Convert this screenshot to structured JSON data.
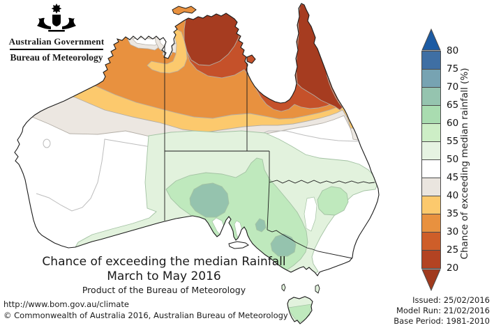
{
  "logo": {
    "gov_title": "Australian Government",
    "bureau": "Bureau of Meteorology"
  },
  "title": {
    "line1": "Chance of exceeding the median Rainfall",
    "line2": "March to May 2016",
    "line3": "Product of the Bureau of Meteorology"
  },
  "legend": {
    "axis_label": "Chance of exceeding median rainfall (%)",
    "ticks": [
      "80",
      "75",
      "70",
      "65",
      "60",
      "55",
      "50",
      "45",
      "40",
      "35",
      "30",
      "25",
      "20"
    ],
    "arrow_up": {
      "label": "above 80",
      "color": "#1c5ba3"
    },
    "bands": [
      {
        "label": "75-80",
        "color": "#3f6fa4"
      },
      {
        "label": "70-75",
        "color": "#77a3b2"
      },
      {
        "label": "65-70",
        "color": "#95c4af"
      },
      {
        "label": "60-65",
        "color": "#a9dcb0"
      },
      {
        "label": "55-60",
        "color": "#cdeec6"
      },
      {
        "label": "50-55",
        "color": "#e6f3e2"
      },
      {
        "label": "45-50",
        "color": "#ffffff"
      },
      {
        "label": "40-45",
        "color": "#eae5df"
      },
      {
        "label": "35-40",
        "color": "#fcc96d"
      },
      {
        "label": "30-35",
        "color": "#e8913f"
      },
      {
        "label": "25-30",
        "color": "#ce5e29"
      },
      {
        "label": "20-25",
        "color": "#b34322"
      }
    ],
    "arrow_down": {
      "label": "below 20",
      "color": "#a03a1e"
    }
  },
  "map": {
    "region": "Australia",
    "colors": {
      "darkred": "#a63c20",
      "redorange": "#c5512a",
      "orange": "#e8913f",
      "yellow": "#fcc96d",
      "beige": "#ece7e1",
      "white": "#ffffff",
      "palegreen": "#e2f2dd",
      "midgreen": "#bfe9bd",
      "teal": "#95c3ae",
      "coast": "#1a1a1a",
      "border": "#1a1a1a",
      "contour": "#bdbdbd",
      "edgewarm": "#b3aea6",
      "edgegreen": "#a3c2a3"
    }
  },
  "chart_data": {
    "type": "contour-map",
    "title": "Chance of exceeding the median Rainfall, March to May 2016",
    "legend_scale_percent": [
      20,
      25,
      30,
      35,
      40,
      45,
      50,
      55,
      60,
      65,
      70,
      75,
      80
    ],
    "regions_summary": [
      {
        "area": "Top End NT and Cape York (far north)",
        "value": "20-25"
      },
      {
        "area": "Northern NT / north QLD bands",
        "value": "25-40"
      },
      {
        "area": "Kimberley and interior fringe",
        "value": "35-45"
      },
      {
        "area": "Central Australia and WA interior",
        "value": "45-50"
      },
      {
        "area": "Southern half (SA, NSW, VIC, TAS)",
        "value": "50-60"
      },
      {
        "area": "Southern SA and northern VIC blobs",
        "value": "65-70"
      }
    ]
  },
  "footer": {
    "url": "http://www.bom.gov.au/climate",
    "copyright": "© Commonwealth of Australia 2016, Australian Bureau of Meteorology"
  },
  "issued": {
    "line1": "Issued: 25/02/2016",
    "line2": "Model Run: 21/02/2016",
    "line3": "Base Period: 1981-2010"
  }
}
